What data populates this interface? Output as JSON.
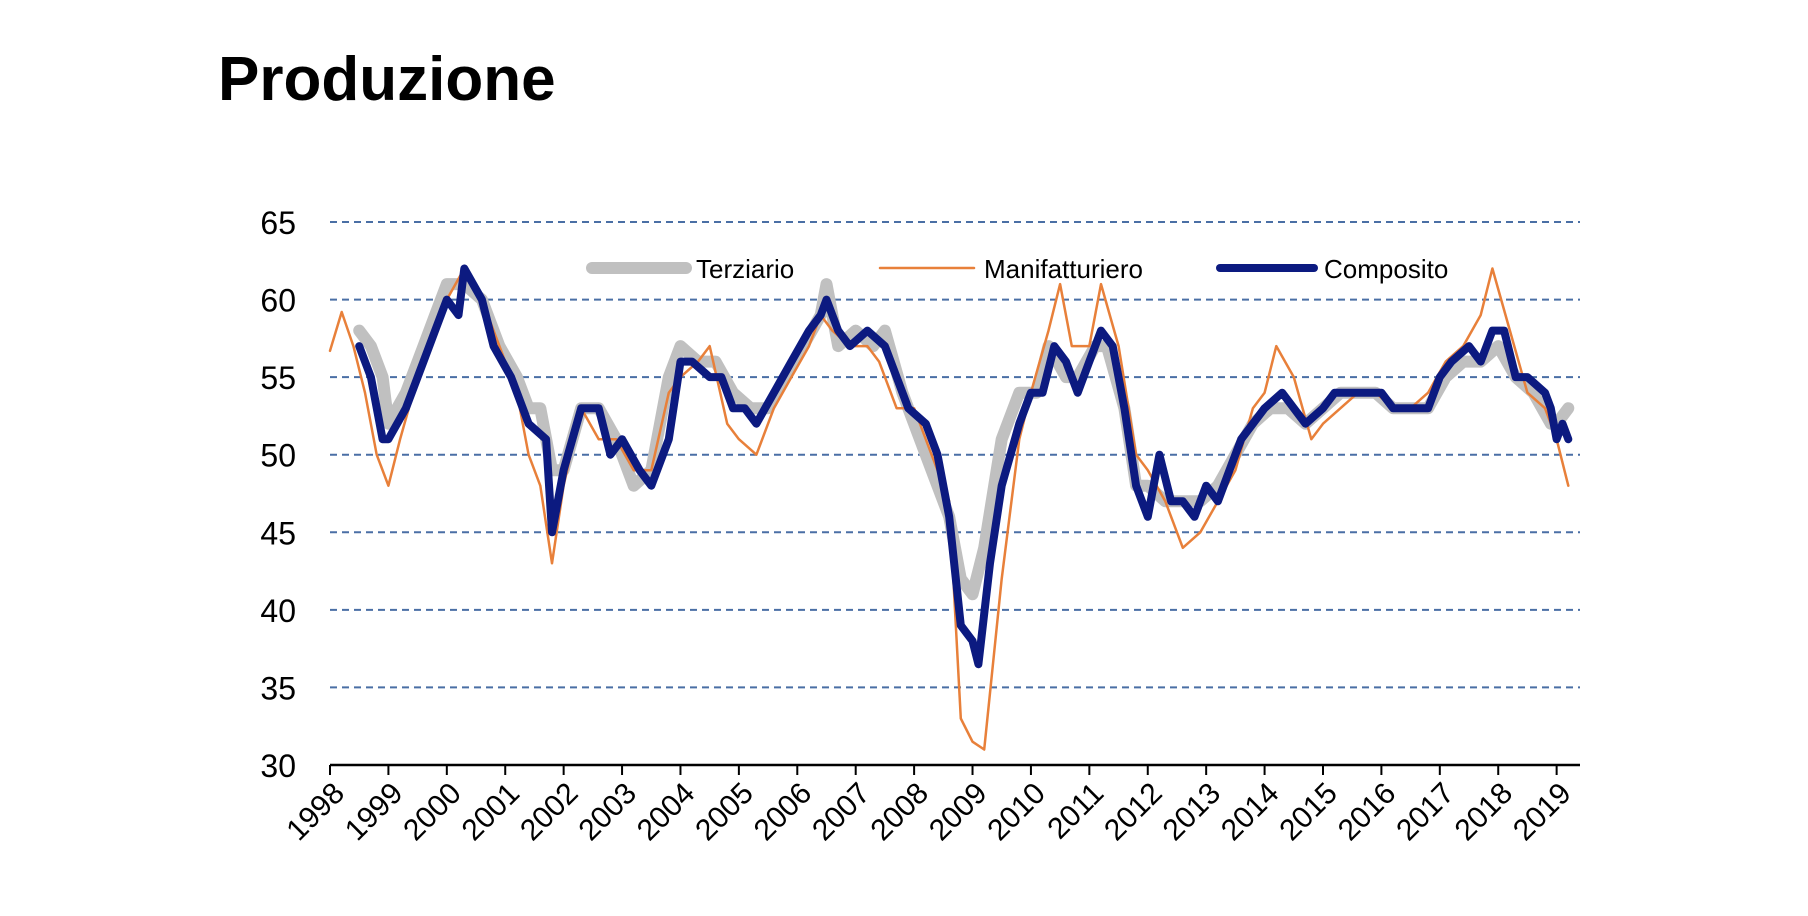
{
  "page": {
    "title": "Produzione"
  },
  "chart_data": {
    "type": "line",
    "title": "Produzione",
    "xlabel": "",
    "ylabel": "",
    "ylim": [
      30,
      65
    ],
    "yticks": [
      30,
      35,
      40,
      45,
      50,
      55,
      60,
      65
    ],
    "xlim": [
      1998,
      2019.4
    ],
    "xticks": [
      "1998",
      "1999",
      "2000",
      "2001",
      "2002",
      "2003",
      "2004",
      "2005",
      "2006",
      "2007",
      "2008",
      "2009",
      "2010",
      "2011",
      "2012",
      "2013",
      "2014",
      "2015",
      "2016",
      "2017",
      "2018",
      "2019"
    ],
    "grid": "horizontal dashed",
    "legend_position": "top",
    "series": [
      {
        "name": "Terziario",
        "color": "#c0c0c0",
        "points": [
          [
            1998.5,
            58
          ],
          [
            1998.7,
            57
          ],
          [
            1998.9,
            55
          ],
          [
            1999.0,
            52
          ],
          [
            1999.3,
            54
          ],
          [
            1999.6,
            57
          ],
          [
            1999.8,
            59
          ],
          [
            2000.0,
            61
          ],
          [
            2000.3,
            61
          ],
          [
            2000.6,
            60
          ],
          [
            2000.9,
            57
          ],
          [
            2001.2,
            55
          ],
          [
            2001.4,
            53
          ],
          [
            2001.6,
            53
          ],
          [
            2001.8,
            49
          ],
          [
            2002.0,
            49
          ],
          [
            2002.3,
            53
          ],
          [
            2002.6,
            53
          ],
          [
            2002.9,
            51
          ],
          [
            2003.2,
            48
          ],
          [
            2003.5,
            49
          ],
          [
            2003.8,
            55
          ],
          [
            2004.0,
            57
          ],
          [
            2004.3,
            56
          ],
          [
            2004.6,
            56
          ],
          [
            2004.9,
            54
          ],
          [
            2005.2,
            53
          ],
          [
            2005.5,
            53
          ],
          [
            2005.8,
            55
          ],
          [
            2006.1,
            57
          ],
          [
            2006.4,
            59
          ],
          [
            2006.5,
            61
          ],
          [
            2006.7,
            57
          ],
          [
            2007.0,
            58
          ],
          [
            2007.3,
            57
          ],
          [
            2007.5,
            58
          ],
          [
            2007.8,
            54
          ],
          [
            2008.0,
            52
          ],
          [
            2008.3,
            49
          ],
          [
            2008.6,
            46
          ],
          [
            2008.8,
            42
          ],
          [
            2009.0,
            41
          ],
          [
            2009.2,
            44
          ],
          [
            2009.5,
            51
          ],
          [
            2009.8,
            54
          ],
          [
            2010.1,
            54
          ],
          [
            2010.3,
            57
          ],
          [
            2010.6,
            55
          ],
          [
            2010.8,
            55
          ],
          [
            2011.1,
            57
          ],
          [
            2011.3,
            57
          ],
          [
            2011.6,
            53
          ],
          [
            2011.8,
            48
          ],
          [
            2012.0,
            48
          ],
          [
            2012.3,
            47
          ],
          [
            2012.6,
            47
          ],
          [
            2012.9,
            47
          ],
          [
            2013.2,
            48
          ],
          [
            2013.5,
            50
          ],
          [
            2013.8,
            52
          ],
          [
            2014.1,
            53
          ],
          [
            2014.4,
            53
          ],
          [
            2014.7,
            52
          ],
          [
            2015.0,
            53
          ],
          [
            2015.3,
            54
          ],
          [
            2015.6,
            54
          ],
          [
            2015.9,
            54
          ],
          [
            2016.2,
            53
          ],
          [
            2016.5,
            53
          ],
          [
            2016.8,
            53
          ],
          [
            2017.1,
            55
          ],
          [
            2017.4,
            56
          ],
          [
            2017.7,
            56
          ],
          [
            2018.0,
            57
          ],
          [
            2018.3,
            55
          ],
          [
            2018.6,
            54
          ],
          [
            2018.9,
            52
          ],
          [
            2019.0,
            52
          ],
          [
            2019.2,
            53
          ]
        ]
      },
      {
        "name": "Manifatturiero",
        "color": "#e8803a",
        "points": [
          [
            1998.0,
            56.7
          ],
          [
            1998.2,
            59.2
          ],
          [
            1998.4,
            57
          ],
          [
            1998.6,
            54
          ],
          [
            1998.8,
            50
          ],
          [
            1999.0,
            48
          ],
          [
            1999.2,
            51
          ],
          [
            1999.5,
            55
          ],
          [
            1999.8,
            58
          ],
          [
            2000.0,
            60
          ],
          [
            2000.3,
            62
          ],
          [
            2000.6,
            60
          ],
          [
            2000.9,
            57
          ],
          [
            2001.2,
            54
          ],
          [
            2001.4,
            50
          ],
          [
            2001.6,
            48
          ],
          [
            2001.8,
            43
          ],
          [
            2002.0,
            48
          ],
          [
            2002.3,
            53
          ],
          [
            2002.6,
            51
          ],
          [
            2002.9,
            51
          ],
          [
            2003.2,
            49
          ],
          [
            2003.5,
            49
          ],
          [
            2003.8,
            54
          ],
          [
            2004.0,
            55
          ],
          [
            2004.3,
            56
          ],
          [
            2004.5,
            57
          ],
          [
            2004.8,
            52
          ],
          [
            2005.0,
            51
          ],
          [
            2005.3,
            50
          ],
          [
            2005.6,
            53
          ],
          [
            2005.9,
            55
          ],
          [
            2006.2,
            57
          ],
          [
            2006.4,
            59
          ],
          [
            2006.6,
            58
          ],
          [
            2006.9,
            57
          ],
          [
            2007.2,
            57
          ],
          [
            2007.4,
            56
          ],
          [
            2007.7,
            53
          ],
          [
            2008.0,
            53
          ],
          [
            2008.3,
            50
          ],
          [
            2008.6,
            47
          ],
          [
            2008.8,
            33
          ],
          [
            2009.0,
            31.5
          ],
          [
            2009.2,
            31
          ],
          [
            2009.5,
            42
          ],
          [
            2009.8,
            51
          ],
          [
            2010.0,
            54
          ],
          [
            2010.3,
            58
          ],
          [
            2010.5,
            61
          ],
          [
            2010.7,
            57
          ],
          [
            2011.0,
            57
          ],
          [
            2011.2,
            61
          ],
          [
            2011.5,
            57
          ],
          [
            2011.8,
            50
          ],
          [
            2012.0,
            49
          ],
          [
            2012.3,
            47
          ],
          [
            2012.6,
            44
          ],
          [
            2012.9,
            45
          ],
          [
            2013.2,
            47
          ],
          [
            2013.5,
            49
          ],
          [
            2013.8,
            53
          ],
          [
            2014.0,
            54
          ],
          [
            2014.2,
            57
          ],
          [
            2014.5,
            55
          ],
          [
            2014.8,
            51
          ],
          [
            2015.0,
            52
          ],
          [
            2015.3,
            53
          ],
          [
            2015.6,
            54
          ],
          [
            2015.9,
            54
          ],
          [
            2016.2,
            53
          ],
          [
            2016.5,
            53
          ],
          [
            2016.8,
            54
          ],
          [
            2017.1,
            56
          ],
          [
            2017.4,
            57
          ],
          [
            2017.7,
            59
          ],
          [
            2017.9,
            62
          ],
          [
            2018.2,
            58
          ],
          [
            2018.5,
            54
          ],
          [
            2018.8,
            53
          ],
          [
            2019.0,
            51
          ],
          [
            2019.2,
            48
          ]
        ]
      },
      {
        "name": "Composito",
        "color": "#0c1a80",
        "points": [
          [
            1998.5,
            57
          ],
          [
            1998.7,
            55
          ],
          [
            1998.9,
            51
          ],
          [
            1999.0,
            51
          ],
          [
            1999.3,
            53
          ],
          [
            1999.6,
            56
          ],
          [
            1999.8,
            58
          ],
          [
            2000.0,
            60
          ],
          [
            2000.2,
            59
          ],
          [
            2000.3,
            62
          ],
          [
            2000.6,
            60
          ],
          [
            2000.8,
            57
          ],
          [
            2001.1,
            55
          ],
          [
            2001.4,
            52
          ],
          [
            2001.7,
            51
          ],
          [
            2001.8,
            45
          ],
          [
            2002.0,
            49
          ],
          [
            2002.3,
            53
          ],
          [
            2002.6,
            53
          ],
          [
            2002.8,
            50
          ],
          [
            2003.0,
            51
          ],
          [
            2003.3,
            49
          ],
          [
            2003.5,
            48
          ],
          [
            2003.8,
            51
          ],
          [
            2004.0,
            56
          ],
          [
            2004.2,
            56
          ],
          [
            2004.5,
            55
          ],
          [
            2004.7,
            55
          ],
          [
            2004.9,
            53
          ],
          [
            2005.1,
            53
          ],
          [
            2005.3,
            52
          ],
          [
            2005.6,
            54
          ],
          [
            2005.9,
            56
          ],
          [
            2006.2,
            58
          ],
          [
            2006.4,
            59
          ],
          [
            2006.5,
            60
          ],
          [
            2006.7,
            58
          ],
          [
            2006.9,
            57
          ],
          [
            2007.2,
            58
          ],
          [
            2007.5,
            57
          ],
          [
            2007.7,
            55
          ],
          [
            2007.9,
            53
          ],
          [
            2008.2,
            52
          ],
          [
            2008.4,
            50
          ],
          [
            2008.6,
            46
          ],
          [
            2008.8,
            39
          ],
          [
            2009.0,
            38
          ],
          [
            2009.1,
            36.5
          ],
          [
            2009.3,
            43
          ],
          [
            2009.5,
            48
          ],
          [
            2009.8,
            52
          ],
          [
            2010.0,
            54
          ],
          [
            2010.2,
            54
          ],
          [
            2010.4,
            57
          ],
          [
            2010.6,
            56
          ],
          [
            2010.8,
            54
          ],
          [
            2011.0,
            56
          ],
          [
            2011.2,
            58
          ],
          [
            2011.4,
            57
          ],
          [
            2011.6,
            53
          ],
          [
            2011.8,
            48
          ],
          [
            2012.0,
            46
          ],
          [
            2012.2,
            50
          ],
          [
            2012.4,
            47
          ],
          [
            2012.6,
            47
          ],
          [
            2012.8,
            46
          ],
          [
            2013.0,
            48
          ],
          [
            2013.2,
            47
          ],
          [
            2013.4,
            49
          ],
          [
            2013.6,
            51
          ],
          [
            2013.8,
            52
          ],
          [
            2014.0,
            53
          ],
          [
            2014.3,
            54
          ],
          [
            2014.5,
            53
          ],
          [
            2014.7,
            52
          ],
          [
            2015.0,
            53
          ],
          [
            2015.2,
            54
          ],
          [
            2015.5,
            54
          ],
          [
            2015.8,
            54
          ],
          [
            2016.0,
            54
          ],
          [
            2016.2,
            53
          ],
          [
            2016.5,
            53
          ],
          [
            2016.8,
            53
          ],
          [
            2017.0,
            55
          ],
          [
            2017.2,
            56
          ],
          [
            2017.5,
            57
          ],
          [
            2017.7,
            56
          ],
          [
            2017.9,
            58
          ],
          [
            2018.1,
            58
          ],
          [
            2018.3,
            55
          ],
          [
            2018.5,
            55
          ],
          [
            2018.8,
            54
          ],
          [
            2018.9,
            53
          ],
          [
            2019.0,
            51
          ],
          [
            2019.1,
            52
          ],
          [
            2019.2,
            51
          ]
        ]
      }
    ]
  }
}
